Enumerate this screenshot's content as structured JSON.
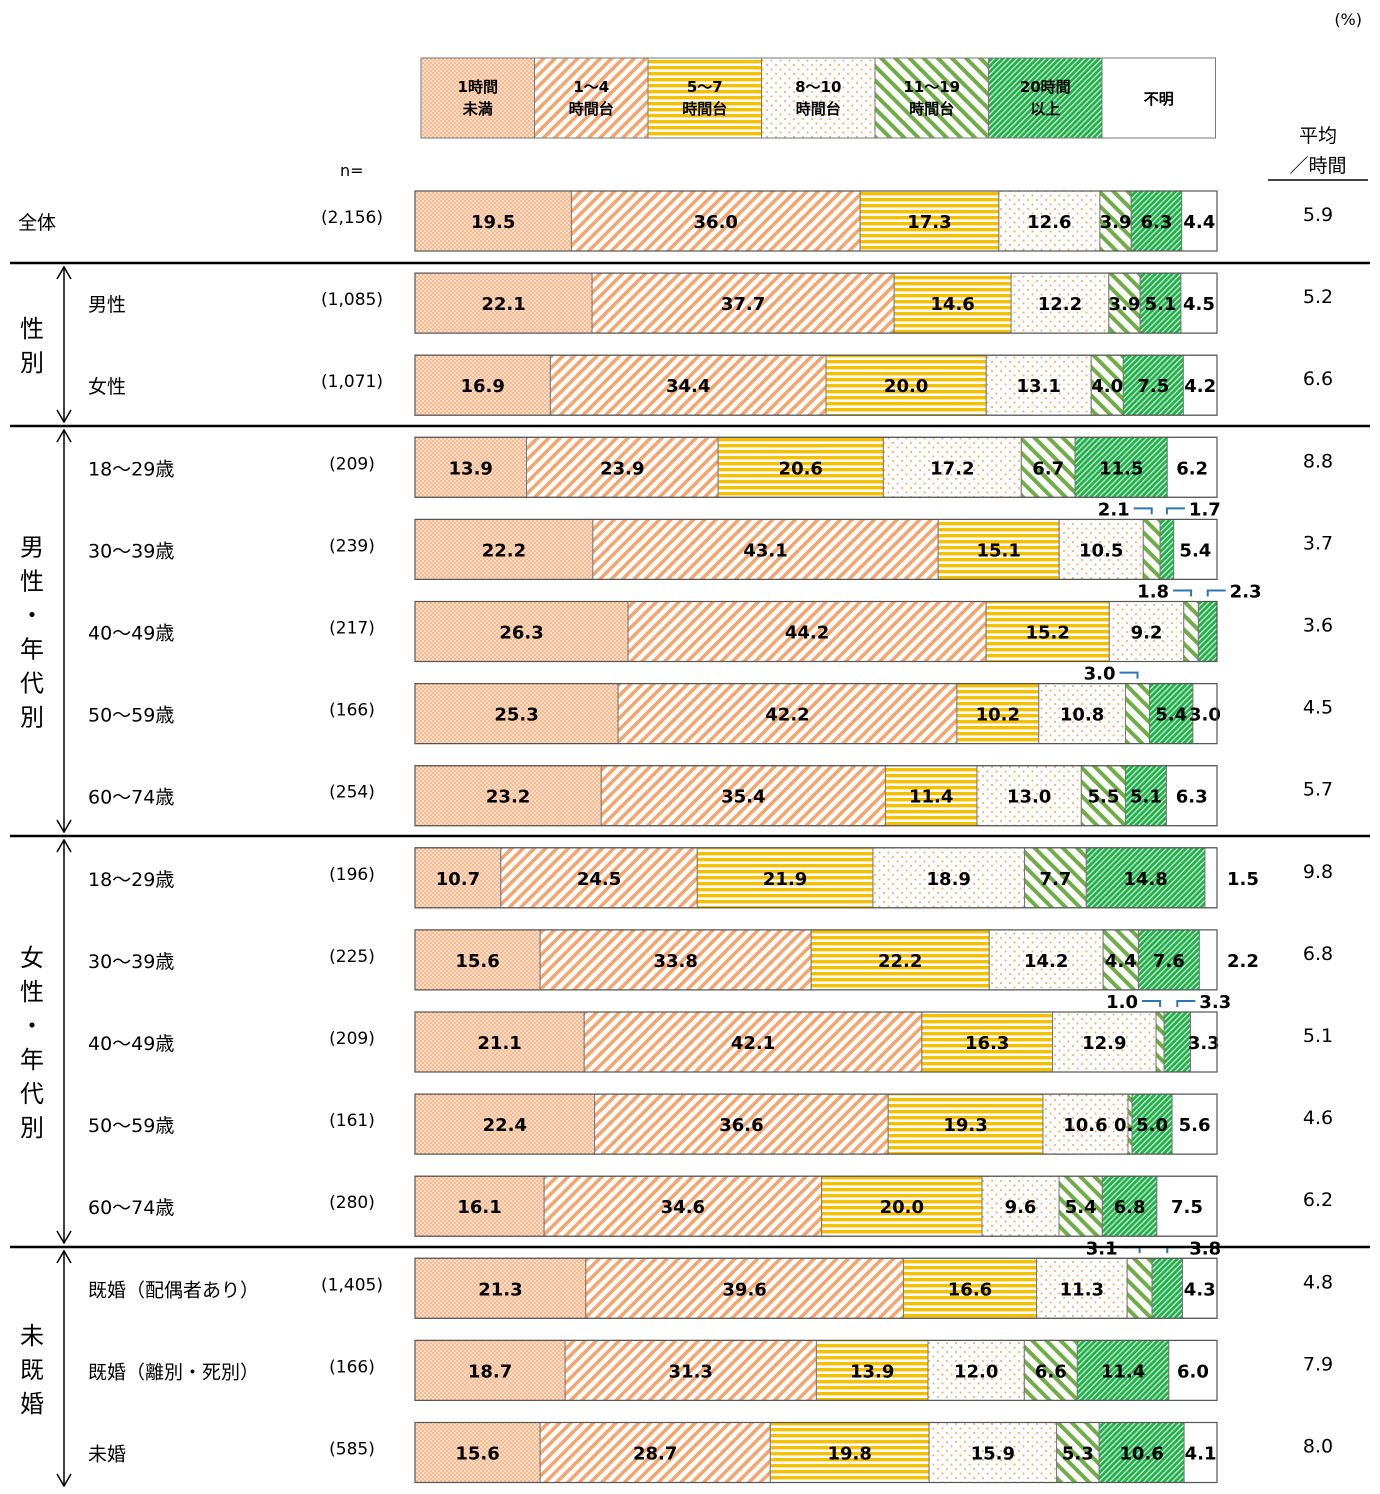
{
  "unit_label": "(%)",
  "n_label": "n=",
  "avg_header": [
    "平均",
    "／時間"
  ],
  "legend": [
    {
      "label": [
        "1時間",
        "未満"
      ],
      "pattern": "dots",
      "color": "#f4a46c"
    },
    {
      "label": [
        "1～4",
        "時間台"
      ],
      "pattern": "diag",
      "color": "#f4a46c"
    },
    {
      "label": [
        "5～7",
        "時間台"
      ],
      "pattern": "hstripe",
      "color": "#f5c000"
    },
    {
      "label": [
        "8～10",
        "時間台"
      ],
      "pattern": "sparse-dots",
      "color": "#f4a46c"
    },
    {
      "label": [
        "11～19",
        "時間台"
      ],
      "pattern": "wide-diag",
      "color": "#70ad47"
    },
    {
      "label": [
        "20時間",
        "以上"
      ],
      "pattern": "dense-diag",
      "color": "#21b04b"
    },
    {
      "label": [
        "不明"
      ],
      "pattern": "none",
      "color": "#ffffff"
    }
  ],
  "groups": [
    {
      "label": "",
      "rows": [
        0
      ]
    },
    {
      "label": "性別",
      "rows": [
        1,
        2
      ]
    },
    {
      "label": "男性・年代別",
      "rows": [
        3,
        4,
        5,
        6,
        7
      ]
    },
    {
      "label": "女性・年代別",
      "rows": [
        8,
        9,
        10,
        11,
        12
      ]
    },
    {
      "label": "未既婚",
      "rows": [
        13,
        14,
        15
      ]
    }
  ],
  "chart_data": {
    "type": "bar",
    "stacked": true,
    "orientation": "horizontal",
    "unit": "%",
    "series_names": [
      "1時間未満",
      "1～4時間台",
      "5～7時間台",
      "8～10時間台",
      "11～19時間台",
      "20時間以上",
      "不明"
    ],
    "rows": [
      {
        "label": "全体",
        "n": "(2,156)",
        "values": [
          19.5,
          36.0,
          17.3,
          12.6,
          3.9,
          6.3,
          4.4
        ],
        "avg": "5.9"
      },
      {
        "label": "男性",
        "n": "(1,085)",
        "values": [
          22.1,
          37.7,
          14.6,
          12.2,
          3.9,
          5.1,
          4.5
        ],
        "avg": "5.2"
      },
      {
        "label": "女性",
        "n": "(1,071)",
        "values": [
          16.9,
          34.4,
          20.0,
          13.1,
          4.0,
          7.5,
          4.2
        ],
        "avg": "6.6"
      },
      {
        "label": "18～29歳",
        "n": "(209)",
        "values": [
          13.9,
          23.9,
          20.6,
          17.2,
          6.7,
          11.5,
          6.2
        ],
        "avg": "8.8"
      },
      {
        "label": "30～39歳",
        "n": "(239)",
        "values": [
          22.2,
          43.1,
          15.1,
          10.5,
          2.1,
          1.7,
          5.4
        ],
        "avg": "3.7"
      },
      {
        "label": "40～49歳",
        "n": "(217)",
        "values": [
          26.3,
          44.2,
          15.2,
          9.2,
          1.8,
          2.3,
          0.0
        ],
        "avg": "3.6"
      },
      {
        "label": "50～59歳",
        "n": "(166)",
        "values": [
          25.3,
          42.2,
          10.2,
          10.8,
          3.0,
          5.4,
          3.0
        ],
        "avg": "4.5"
      },
      {
        "label": "60～74歳",
        "n": "(254)",
        "values": [
          23.2,
          35.4,
          11.4,
          13.0,
          5.5,
          5.1,
          6.3
        ],
        "avg": "5.7"
      },
      {
        "label": "18～29歳",
        "n": "(196)",
        "values": [
          10.7,
          24.5,
          21.9,
          18.9,
          7.7,
          14.8,
          1.5
        ],
        "avg": "9.8"
      },
      {
        "label": "30～39歳",
        "n": "(225)",
        "values": [
          15.6,
          33.8,
          22.2,
          14.2,
          4.4,
          7.6,
          2.2
        ],
        "avg": "6.8"
      },
      {
        "label": "40～49歳",
        "n": "(209)",
        "values": [
          21.1,
          42.1,
          16.3,
          12.9,
          1.0,
          3.3,
          3.3
        ],
        "avg": "5.1"
      },
      {
        "label": "50～59歳",
        "n": "(161)",
        "values": [
          22.4,
          36.6,
          19.3,
          10.6,
          0.5,
          5.0,
          5.6
        ],
        "avg": "4.6"
      },
      {
        "label": "60～74歳",
        "n": "(280)",
        "values": [
          16.1,
          34.6,
          20.0,
          9.6,
          5.4,
          6.8,
          7.5
        ],
        "avg": "6.2"
      },
      {
        "label": "既婚（配偶者あり）",
        "n": "(1,405)",
        "values": [
          21.3,
          39.6,
          16.6,
          11.3,
          3.1,
          3.8,
          4.3
        ],
        "avg": "4.8"
      },
      {
        "label": "既婚（離別・死別）",
        "n": "(166)",
        "values": [
          18.7,
          31.3,
          13.9,
          12.0,
          6.6,
          11.4,
          6.0
        ],
        "avg": "7.9"
      },
      {
        "label": "未婚",
        "n": "(585)",
        "values": [
          15.6,
          28.7,
          19.8,
          15.9,
          5.3,
          10.6,
          4.1
        ],
        "avg": "8.0"
      }
    ],
    "outside_labels": [
      {
        "row": 4,
        "series": 4,
        "text": "2.1",
        "side": "left"
      },
      {
        "row": 4,
        "series": 5,
        "text": "1.7",
        "side": "right"
      },
      {
        "row": 5,
        "series": 4,
        "text": "1.8",
        "side": "left"
      },
      {
        "row": 5,
        "series": 5,
        "text": "2.3",
        "side": "right"
      },
      {
        "row": 6,
        "series": 4,
        "text": "3.0",
        "side": "left"
      },
      {
        "row": 10,
        "series": 4,
        "text": "1.0",
        "side": "left"
      },
      {
        "row": 10,
        "series": 5,
        "text": "3.3",
        "side": "right"
      },
      {
        "row": 13,
        "series": 4,
        "text": "3.1",
        "side": "left"
      },
      {
        "row": 13,
        "series": 5,
        "text": "3.8",
        "side": "right"
      }
    ]
  }
}
